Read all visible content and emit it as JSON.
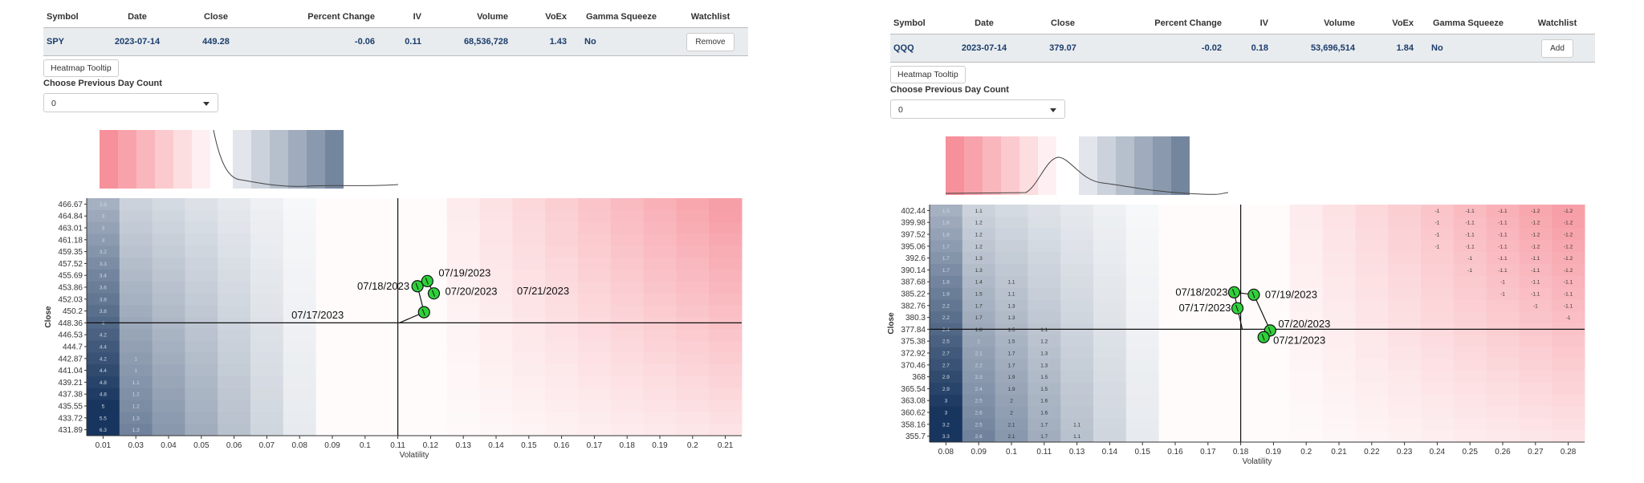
{
  "panels": [
    {
      "table": {
        "headers": [
          "Symbol",
          "Date",
          "Close",
          "Percent Change",
          "IV",
          "Volume",
          "VoEx",
          "Gamma Squeeze",
          "Watchlist"
        ],
        "row": {
          "symbol": "SPY",
          "date": "2023-07-14",
          "close": "449.28",
          "percent_change": "-0.06",
          "iv": "0.11",
          "volume": "68,536,728",
          "voex": "1.43",
          "gamma_squeeze": "No",
          "watchlist_button": "Remove"
        }
      },
      "heatmap_tooltip_button": "Heatmap Tooltip",
      "previous_day": {
        "label": "Choose Previous Day Count",
        "value": "0"
      },
      "chart_data": {
        "type": "heatmap",
        "xlabel": "Volatility",
        "ylabel": "Close",
        "x_ticks": [
          "0.01",
          "0.03",
          "0.04",
          "0.05",
          "0.06",
          "0.07",
          "0.08",
          "0.09",
          "0.1",
          "0.11",
          "0.12",
          "0.13",
          "0.14",
          "0.15",
          "0.16",
          "0.17",
          "0.18",
          "0.19",
          "0.2",
          "0.21"
        ],
        "y_ticks": [
          "466.67",
          "464.84",
          "463.01",
          "461.18",
          "459.35",
          "457.52",
          "455.69",
          "453.86",
          "452.03",
          "450.2",
          "448.36",
          "446.53",
          "444.7",
          "442.87",
          "441.04",
          "439.21",
          "437.38",
          "435.55",
          "433.72",
          "431.89"
        ],
        "cell_labels": {
          "col0": [
            "2.9",
            "3",
            "3",
            "3",
            "3.2",
            "3.3",
            "3.4",
            "3.6",
            "3.8",
            "3.8",
            "4",
            "4.2",
            "4.4",
            "4.2",
            "4.4",
            "4.8",
            "4.8",
            "5",
            "5.5",
            "6.3"
          ],
          "col1": [
            "",
            "",
            "",
            "",
            "",
            "",
            "",
            "",
            "",
            "",
            "",
            "",
            "",
            "1",
            "1",
            "1.1",
            "1.2",
            "1.2",
            "1.3",
            "1.3"
          ]
        },
        "crosshair": {
          "x": "0.11",
          "y": "448.36"
        },
        "points": [
          {
            "label": "07/17/2023",
            "vol": 0.118,
            "close": 450.0
          },
          {
            "label": "07/18/2023",
            "vol": 0.116,
            "close": 454.0
          },
          {
            "label": "07/19/2023",
            "vol": 0.119,
            "close": 454.8
          },
          {
            "label": "07/20/2023",
            "vol": 0.121,
            "close": 452.9
          },
          {
            "label": "07/21/2023",
            "vol": null,
            "close": null
          }
        ],
        "colors": {
          "positive": "#f36b78",
          "negative": "#0b2a55"
        },
        "legend_blue_label": "",
        "legend_red_label": ""
      }
    },
    {
      "table": {
        "headers": [
          "Symbol",
          "Date",
          "Close",
          "Percent Change",
          "IV",
          "Volume",
          "VoEx",
          "Gamma Squeeze",
          "Watchlist"
        ],
        "row": {
          "symbol": "QQQ",
          "date": "2023-07-14",
          "close": "379.07",
          "percent_change": "-0.02",
          "iv": "0.18",
          "volume": "53,696,514",
          "voex": "1.84",
          "gamma_squeeze": "No",
          "watchlist_button": "Add"
        }
      },
      "heatmap_tooltip_button": "Heatmap Tooltip",
      "previous_day": {
        "label": "Choose Previous Day Count",
        "value": "0"
      },
      "chart_data": {
        "type": "heatmap",
        "xlabel": "Volatility",
        "ylabel": "Close",
        "x_ticks": [
          "0.08",
          "0.09",
          "0.1",
          "0.11",
          "0.13",
          "0.14",
          "0.15",
          "0.16",
          "0.17",
          "0.18",
          "0.19",
          "0.2",
          "0.21",
          "0.22",
          "0.23",
          "0.24",
          "0.25",
          "0.26",
          "0.27",
          "0.28"
        ],
        "y_ticks": [
          "402.44",
          "399.98",
          "397.52",
          "395.06",
          "392.6",
          "390.14",
          "387.68",
          "385.22",
          "382.76",
          "380.3",
          "377.84",
          "375.38",
          "372.92",
          "370.46",
          "368",
          "365.54",
          "363.08",
          "360.62",
          "358.16",
          "355.7"
        ],
        "cell_labels": {
          "col0": [
            "1.5",
            "1.6",
            "1.6",
            "1.7",
            "1.7",
            "1.7",
            "1.8",
            "1.9",
            "2.2",
            "2.2",
            "2.4",
            "2.5",
            "2.7",
            "2.7",
            "2.9",
            "2.9",
            "3",
            "3",
            "3.2",
            "3.3"
          ],
          "col1": [
            "1.1",
            "1.2",
            "1.2",
            "1.2",
            "1.3",
            "1.3",
            "1.4",
            "1.5",
            "1.7",
            "1.7",
            "1.8",
            "2",
            "2.1",
            "2.2",
            "2.3",
            "2.4",
            "2.5",
            "2.6",
            "2.5",
            "2.6"
          ],
          "col2": [
            "",
            "",
            "",
            "",
            "",
            "",
            "1.1",
            "1.1",
            "1.3",
            "1.3",
            "1.5",
            "1.5",
            "1.7",
            "1.7",
            "1.9",
            "1.9",
            "2",
            "2",
            "2.1",
            "2.1"
          ],
          "col3": [
            "",
            "",
            "",
            "",
            "",
            "",
            "",
            "",
            "",
            "",
            "1.1",
            "1.2",
            "1.3",
            "1.3",
            "1.5",
            "1.5",
            "1.6",
            "1.6",
            "1.7",
            "1.7"
          ],
          "col4": [
            "",
            "",
            "",
            "",
            "",
            "",
            "",
            "",
            "",
            "",
            "",
            "",
            "",
            "",
            "",
            "",
            "",
            "",
            "1.1",
            "1.1"
          ],
          "col15": [
            "-1",
            "-1",
            "-1",
            "-1",
            "",
            "",
            "",
            "",
            "",
            "",
            "",
            "",
            "",
            "",
            "",
            "",
            "",
            "",
            "",
            ""
          ],
          "col16": [
            "-1.1",
            "-1.1",
            "-1.1",
            "-1.1",
            "-1",
            "-1",
            "",
            "",
            "",
            "",
            "",
            "",
            "",
            "",
            "",
            "",
            "",
            "",
            "",
            ""
          ],
          "col17": [
            "-1.1",
            "-1.1",
            "-1.1",
            "-1.1",
            "-1.1",
            "-1.1",
            "-1",
            "-1",
            "",
            "",
            "",
            "",
            "",
            "",
            "",
            "",
            "",
            "",
            "",
            ""
          ],
          "col18": [
            "-1.2",
            "-1.2",
            "-1.2",
            "-1.2",
            "-1.1",
            "-1.1",
            "-1.1",
            "-1.1",
            "-1",
            "",
            "",
            "",
            "",
            "",
            "",
            "",
            "",
            "",
            "",
            ""
          ],
          "col19": [
            "-1.2",
            "-1.2",
            "-1.2",
            "-1.2",
            "-1.2",
            "-1.2",
            "-1.1",
            "-1.1",
            "-1.1",
            "-1",
            "",
            "",
            "",
            "",
            "",
            "",
            "",
            "",
            "",
            ""
          ]
        },
        "crosshair": {
          "x": "0.18",
          "y": "377.84"
        },
        "points": [
          {
            "label": "07/17/2023",
            "vol": 0.179,
            "close": 382.2
          },
          {
            "label": "07/18/2023",
            "vol": 0.178,
            "close": 385.5
          },
          {
            "label": "07/19/2023",
            "vol": 0.184,
            "close": 385.0
          },
          {
            "label": "07/20/2023",
            "vol": 0.189,
            "close": 377.6
          },
          {
            "label": "07/21/2023",
            "vol": 0.187,
            "close": 376.2
          }
        ],
        "colors": {
          "positive": "#f36b78",
          "negative": "#0b2a55"
        },
        "legend_blue_label": "",
        "legend_red_label": ""
      }
    }
  ]
}
